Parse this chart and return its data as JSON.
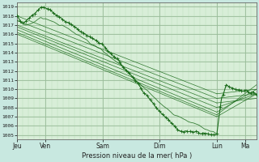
{
  "title": "Pression niveau de la mer( hPa )",
  "bg_color": "#c8e8e0",
  "plot_bg_color": "#d8eed8",
  "line_color": "#1a6b1a",
  "grid_color_major": "#99bb99",
  "grid_color_minor": "#bbddbb",
  "ylim": [
    1004.5,
    1019.5
  ],
  "yticks": [
    1005,
    1006,
    1007,
    1008,
    1009,
    1010,
    1011,
    1012,
    1013,
    1014,
    1015,
    1016,
    1017,
    1018,
    1019
  ],
  "xtick_labels": [
    "Jeu",
    "Ven",
    "Sam",
    "Dim",
    "Lun",
    "Ma"
  ],
  "xtick_positions": [
    0,
    30,
    90,
    150,
    210,
    240
  ],
  "xlim": [
    0,
    252
  ]
}
